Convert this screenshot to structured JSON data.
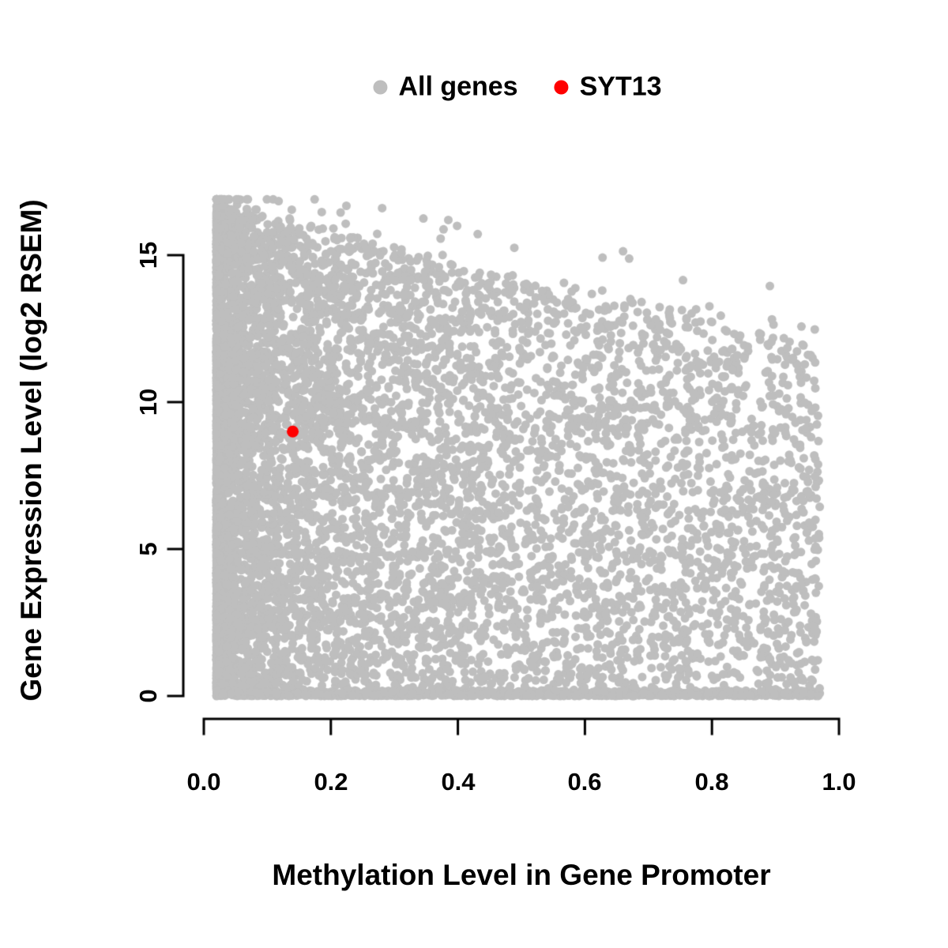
{
  "chart_data": {
    "type": "scatter",
    "title": "",
    "xlabel": "Methylation Level in Gene Promoter",
    "ylabel": "Gene Expression Level (log2 RSEM)",
    "xlim": [
      0,
      1
    ],
    "ylim": [
      0,
      17
    ],
    "grid": false,
    "legend_position": "top",
    "x_ticks": [
      "0.0",
      "0.2",
      "0.4",
      "0.6",
      "0.8",
      "1.0"
    ],
    "x_tick_values": [
      0,
      0.2,
      0.4,
      0.6,
      0.8,
      1.0
    ],
    "y_ticks": [
      "0",
      "5",
      "10",
      "15"
    ],
    "y_tick_values": [
      0,
      5,
      10,
      15
    ],
    "legend": [
      {
        "label": "All genes",
        "color": "#bebebe"
      },
      {
        "label": "SYT13",
        "color": "#ff0000"
      }
    ],
    "series": [
      {
        "name": "All genes",
        "type": "density_cloud",
        "color": "#bebebe",
        "marker": "filled-circle",
        "n_points": 9000,
        "seed": 42,
        "x_range": [
          0.02,
          0.97
        ],
        "x_skew": 2.6,
        "y_envelope_at_x0": 16.6,
        "y_envelope_at_x1": 12.0,
        "baseline_fraction": 0.12
      },
      {
        "name": "SYT13",
        "type": "point",
        "color": "#ff0000",
        "marker": "filled-circle",
        "points": [
          [
            0.14,
            9.0
          ]
        ]
      }
    ]
  }
}
